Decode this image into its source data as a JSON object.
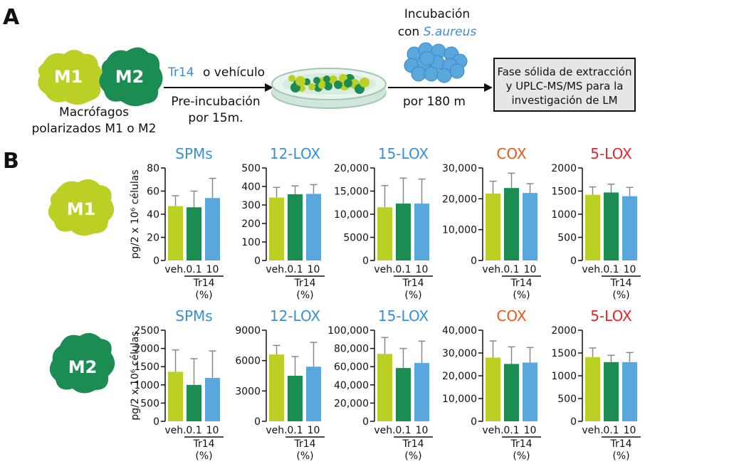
{
  "panel_a": {
    "letter": "A",
    "m1_label": "M1",
    "m2_label": "M2",
    "macrophages_line1": "Macrófagos",
    "macrophages_line2": "polarizados M1 o M2",
    "tr14_word": "Tr14",
    "vehicle_word": "o vehículo",
    "preinc_line1": "Pre-incubación",
    "preinc_line2": "por 15m.",
    "incub_line1": "Incubación",
    "incub_line2_prefix": "con ",
    "incub_line2_species": "S.aureus",
    "incub_time": "por 180 m",
    "box_line1": "Fase sólida de extracción",
    "box_line2": "y UPLC-MS/MS para la",
    "box_line3": "investigación de LM"
  },
  "panel_b": {
    "letter": "B",
    "row_labels": [
      "M1",
      "M2"
    ],
    "ylabel": "pg/2 x 10⁶ células",
    "xcats": [
      "veh.",
      "0.1",
      "10"
    ],
    "group_label": "Tr14",
    "group_unit": "(%)"
  },
  "colors": {
    "veh": "#bccf24",
    "c01": "#1b8c52",
    "c10": "#5aa7dd",
    "m1_cell": "#bccf24",
    "m2_cell": "#1b8c52",
    "title_blue": "#3a8fd0",
    "title_orange": "#e9581b",
    "title_red": "#e1262c"
  },
  "chart_data": [
    {
      "type": "bar",
      "row": "M1",
      "title": "SPMs",
      "title_color": "title_blue",
      "categories": [
        "veh.",
        "0.1",
        "10"
      ],
      "values": [
        47,
        46,
        54
      ],
      "errors": [
        9,
        14,
        17
      ],
      "ylim": [
        0,
        80
      ],
      "ticks": [
        0,
        20,
        40,
        60,
        80
      ],
      "tick_labels": [
        "0",
        "20",
        "40",
        "60",
        "80"
      ],
      "ylabel": "pg/2 x 10⁶ células"
    },
    {
      "type": "bar",
      "row": "M1",
      "title": "12-LOX",
      "title_color": "title_blue",
      "categories": [
        "veh.",
        "0.1",
        "10"
      ],
      "values": [
        340,
        358,
        360
      ],
      "errors": [
        55,
        45,
        50
      ],
      "ylim": [
        0,
        500
      ],
      "ticks": [
        0,
        100,
        200,
        300,
        400,
        500
      ],
      "tick_labels": [
        "0",
        "100",
        "200",
        "300",
        "400",
        "500"
      ]
    },
    {
      "type": "bar",
      "row": "M1",
      "title": "15-LOX",
      "title_color": "title_blue",
      "categories": [
        "veh.",
        "0.1",
        "10"
      ],
      "values": [
        11500,
        12300,
        12300
      ],
      "errors": [
        4700,
        5500,
        5300
      ],
      "ylim": [
        0,
        20000
      ],
      "ticks": [
        0,
        5000,
        10000,
        15000,
        20000
      ],
      "tick_labels": [
        "0",
        "5000",
        "10,000",
        "15,000",
        "20,000"
      ]
    },
    {
      "type": "bar",
      "row": "M1",
      "title": "COX",
      "title_color": "title_orange",
      "categories": [
        "veh.",
        "0.1",
        "10"
      ],
      "values": [
        21700,
        23500,
        21900
      ],
      "errors": [
        4000,
        4800,
        3000
      ],
      "ylim": [
        0,
        30000
      ],
      "ticks": [
        0,
        10000,
        20000,
        30000
      ],
      "tick_labels": [
        "0",
        "10,000",
        "20,000",
        "30,000"
      ]
    },
    {
      "type": "bar",
      "row": "M1",
      "title": "5-LOX",
      "title_color": "title_red",
      "categories": [
        "veh.",
        "0.1",
        "10"
      ],
      "values": [
        1420,
        1470,
        1390
      ],
      "errors": [
        170,
        180,
        190
      ],
      "ylim": [
        0,
        2000
      ],
      "ticks": [
        0,
        500,
        1000,
        1500,
        2000
      ],
      "tick_labels": [
        "0",
        "500",
        "1000",
        "1500",
        "2000"
      ]
    },
    {
      "type": "bar",
      "row": "M2",
      "title": "SPMs",
      "title_color": "title_blue",
      "categories": [
        "veh.",
        "0.1",
        "10"
      ],
      "values": [
        1360,
        1000,
        1190
      ],
      "errors": [
        600,
        720,
        740
      ],
      "ylim": [
        0,
        2500
      ],
      "ticks": [
        0,
        500,
        1000,
        1500,
        2000,
        2500
      ],
      "tick_labels": [
        "0",
        "500",
        "1000",
        "1500",
        "2000",
        "2500"
      ],
      "ylabel": "pg/2 x 10⁶ células"
    },
    {
      "type": "bar",
      "row": "M2",
      "title": "12-LOX",
      "title_color": "title_blue",
      "categories": [
        "veh.",
        "0.1",
        "10"
      ],
      "values": [
        6600,
        4500,
        5400
      ],
      "errors": [
        900,
        1900,
        2400
      ],
      "ylim": [
        0,
        9000
      ],
      "ticks": [
        0,
        3000,
        6000,
        9000
      ],
      "tick_labels": [
        "0",
        "3000",
        "6000",
        "9000"
      ]
    },
    {
      "type": "bar",
      "row": "M2",
      "title": "15-LOX",
      "title_color": "title_blue",
      "categories": [
        "veh.",
        "0.1",
        "10"
      ],
      "values": [
        74000,
        58500,
        64000
      ],
      "errors": [
        18000,
        21500,
        24000
      ],
      "ylim": [
        0,
        100000
      ],
      "ticks": [
        0,
        20000,
        40000,
        60000,
        80000,
        100000
      ],
      "tick_labels": [
        "0",
        "20,000",
        "40,000",
        "60,000",
        "80,000",
        "100,000"
      ]
    },
    {
      "type": "bar",
      "row": "M2",
      "title": "COX",
      "title_color": "title_orange",
      "categories": [
        "veh.",
        "0.1",
        "10"
      ],
      "values": [
        28000,
        25200,
        25800
      ],
      "errors": [
        7300,
        7500,
        6600
      ],
      "ylim": [
        0,
        40000
      ],
      "ticks": [
        0,
        10000,
        20000,
        30000,
        40000
      ],
      "tick_labels": [
        "0",
        "10,000",
        "20,000",
        "30,000",
        "40,000"
      ]
    },
    {
      "type": "bar",
      "row": "M2",
      "title": "5-LOX",
      "title_color": "title_red",
      "categories": [
        "veh.",
        "0.1",
        "10"
      ],
      "values": [
        1410,
        1300,
        1300
      ],
      "errors": [
        200,
        150,
        210
      ],
      "ylim": [
        0,
        2000
      ],
      "ticks": [
        0,
        500,
        1000,
        1500,
        2000
      ],
      "tick_labels": [
        "0",
        "500",
        "1000",
        "1500",
        "2000"
      ]
    }
  ]
}
